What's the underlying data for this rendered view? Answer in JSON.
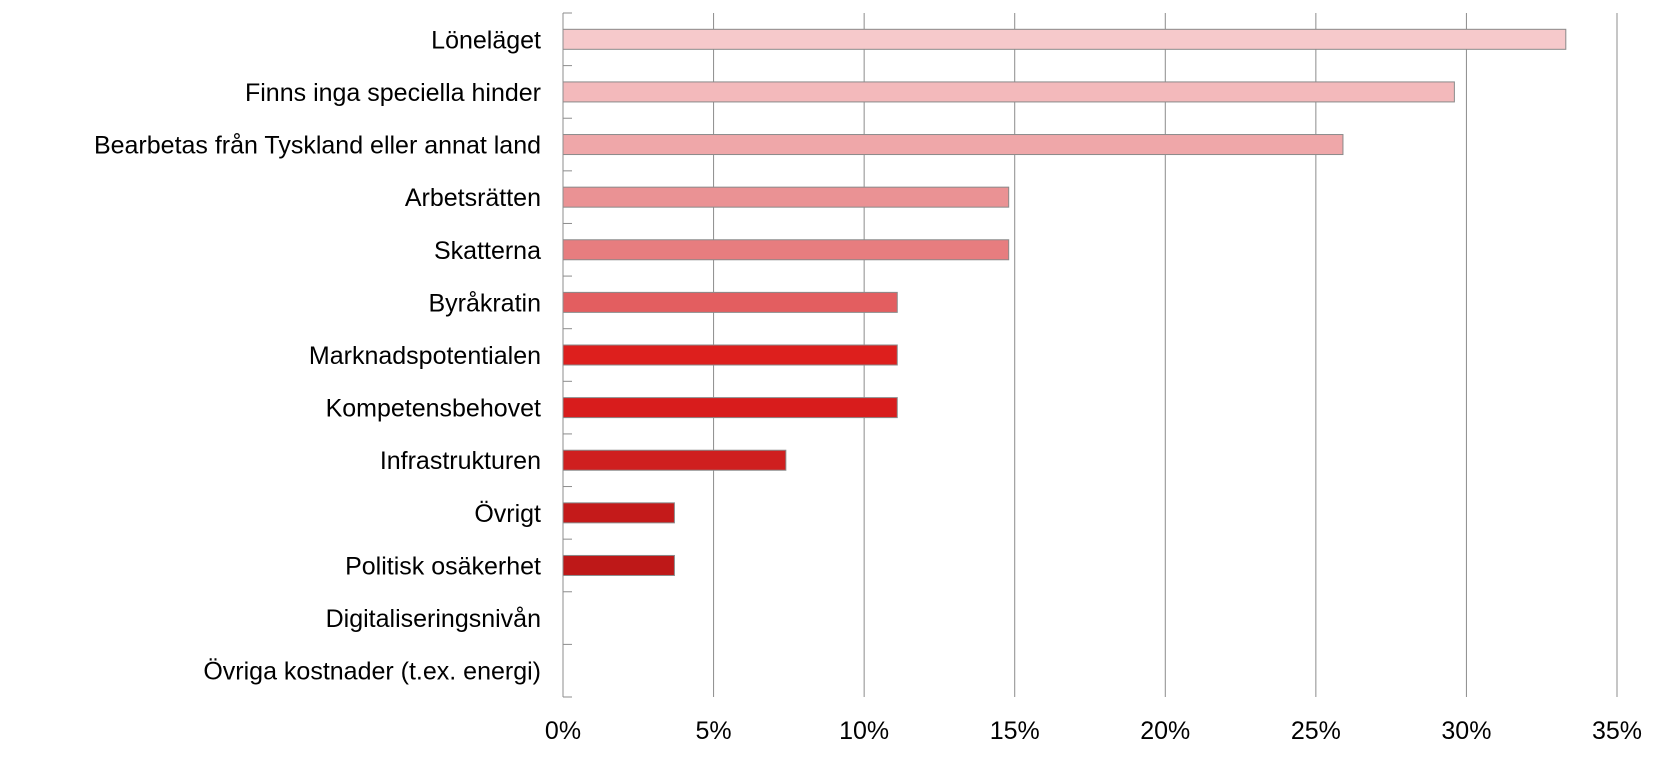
{
  "chart_data": {
    "type": "bar",
    "orientation": "horizontal",
    "categories": [
      "Löneläget",
      "Finns inga speciella hinder",
      "Bearbetas från Tyskland eller annat land",
      "Arbetsrätten",
      "Skatterna",
      "Byråkratin",
      "Marknadspotentialen",
      "Kompetensbehovet",
      "Infrastrukturen",
      "Övrigt",
      "Politisk osäkerhet",
      "Digitaliseringsnivån",
      "Övriga kostnader (t.ex. energi)"
    ],
    "values": [
      33.3,
      29.6,
      25.9,
      14.8,
      14.8,
      11.1,
      11.1,
      11.1,
      7.4,
      3.7,
      3.7,
      0,
      0
    ],
    "colors": [
      "#f6c9cb",
      "#f3b9bb",
      "#efa7a9",
      "#ea9294",
      "#e77d7f",
      "#e35e60",
      "#dd1f1d",
      "#d81c1c",
      "#cf1f1f",
      "#c41a1a",
      "#be1818",
      "#be1818",
      "#be1818"
    ],
    "xlim": [
      0,
      35
    ],
    "x_ticks": [
      0,
      5,
      10,
      15,
      20,
      25,
      30,
      35
    ],
    "x_tick_labels": [
      "0%",
      "5%",
      "10%",
      "15%",
      "20%",
      "25%",
      "30%",
      "35%"
    ],
    "title": "",
    "xlabel": "",
    "ylabel": "",
    "grid": "vertical",
    "legend": "none"
  }
}
